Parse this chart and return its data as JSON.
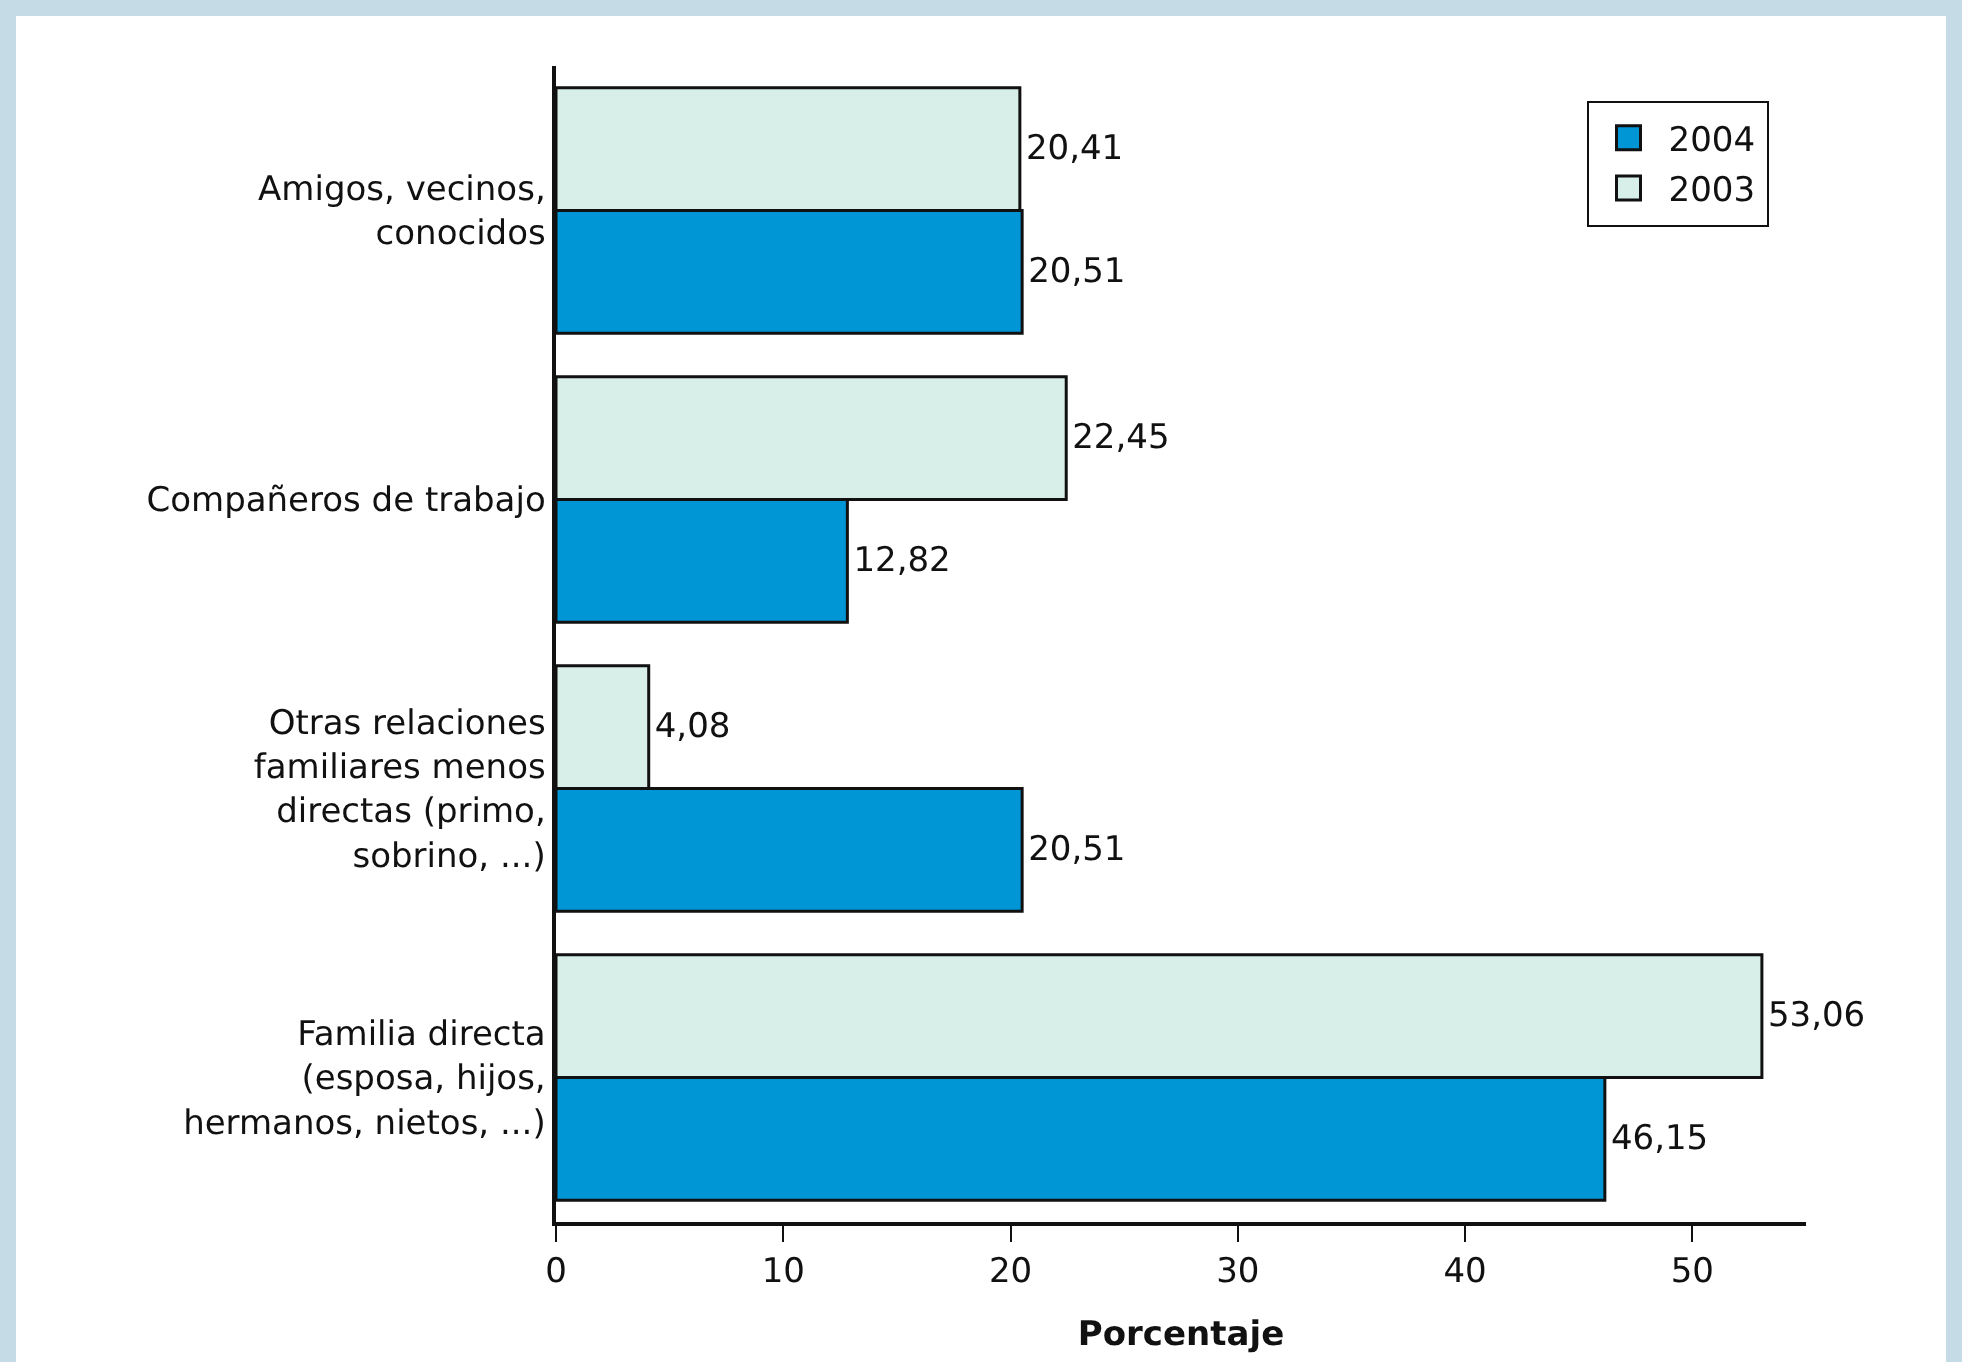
{
  "chart_data": {
    "type": "bar",
    "orientation": "horizontal",
    "xlabel": "Porcentaje",
    "categories": [
      "Amigos, vecinos, conocidos",
      "Compañeros de trabajo",
      "Otras relaciones familiares menos directas (primo, sobrino, ...)",
      "Familia directa (esposa, hijos, hermanos, nietos, ...)"
    ],
    "series": [
      {
        "name": "2004",
        "color": "#0096d6",
        "values": [
          20.51,
          12.82,
          20.51,
          46.15
        ],
        "value_labels": [
          "20,51",
          "12,82",
          "20,51",
          "46,15"
        ]
      },
      {
        "name": "2003",
        "color": "#d8eee8",
        "values": [
          20.41,
          22.45,
          4.08,
          53.06
        ],
        "value_labels": [
          "20,41",
          "22,45",
          "4,08",
          "53,06"
        ]
      }
    ],
    "xlim": [
      0,
      55
    ],
    "xticks": [
      0,
      10,
      20,
      30,
      40,
      50
    ],
    "grid": false,
    "legend": "top right"
  }
}
